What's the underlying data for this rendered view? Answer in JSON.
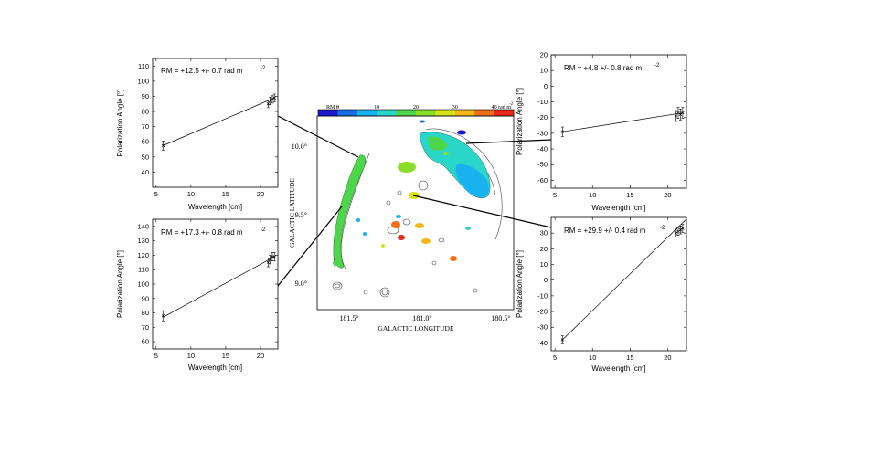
{
  "map": {
    "colorbar": {
      "prefix": "RM  =",
      "ticks": [
        "0",
        "10",
        "20",
        "30",
        "40 rad m"
      ],
      "unit_exp": "-2",
      "range": [
        -5,
        45
      ],
      "colors": [
        "#1a1acc",
        "#1a6be6",
        "#19b2f0",
        "#2ad6c8",
        "#4ed64a",
        "#8ade2a",
        "#d8e21a",
        "#f5b718",
        "#f0701a",
        "#e8281a"
      ]
    },
    "xlabel": "GALACTIC LONGITUDE",
    "ylabel": "GALACTIC LATITUDE",
    "xticks": [
      "181.5°",
      "181.0°",
      "180.5°"
    ],
    "yticks": [
      "10.0°",
      "9.5°",
      "9.0°"
    ]
  },
  "chart_data": [
    {
      "type": "scatter",
      "panel": "top-left",
      "annotation": "RM = +12.5 +/- 0.7 rad m",
      "annotation_exp": "-2",
      "xlabel": "Wavelength [cm]",
      "ylabel": "Polarization Angle [°]",
      "xlim": [
        4.5,
        22.5
      ],
      "ylim": [
        30,
        115
      ],
      "xticks": [
        5,
        10,
        15,
        20
      ],
      "yticks": [
        40,
        50,
        60,
        70,
        80,
        90,
        100,
        110
      ],
      "points": [
        {
          "x": 6.0,
          "y": 57.5,
          "err": 3
        },
        {
          "x": 21.1,
          "y": 85,
          "err": 2.5
        },
        {
          "x": 21.4,
          "y": 87,
          "err": 2.5
        },
        {
          "x": 21.7,
          "y": 88,
          "err": 2.5
        },
        {
          "x": 22.0,
          "y": 89,
          "err": 2.5
        }
      ],
      "fit": [
        [
          6.0,
          57.5
        ],
        [
          22.0,
          89
        ]
      ]
    },
    {
      "type": "scatter",
      "panel": "bottom-left",
      "annotation": "RM = +17.3 +/- 0.8 rad m",
      "annotation_exp": "-2",
      "xlabel": "Wavelength [cm]",
      "ylabel": "Polarization Angle [°]",
      "xlim": [
        4.5,
        22.5
      ],
      "ylim": [
        55,
        145
      ],
      "xticks": [
        5,
        10,
        15,
        20
      ],
      "yticks": [
        60,
        70,
        80,
        90,
        100,
        110,
        120,
        130,
        140
      ],
      "points": [
        {
          "x": 6.0,
          "y": 78,
          "err": 3.5
        },
        {
          "x": 21.1,
          "y": 115,
          "err": 3
        },
        {
          "x": 21.4,
          "y": 117,
          "err": 3
        },
        {
          "x": 21.7,
          "y": 119,
          "err": 3
        },
        {
          "x": 22.0,
          "y": 119,
          "err": 3
        }
      ],
      "fit": [
        [
          6.0,
          77
        ],
        [
          22.0,
          119
        ]
      ]
    },
    {
      "type": "scatter",
      "panel": "top-right",
      "annotation": "RM = +4.8 +/- 0.8 rad m",
      "annotation_exp": "-2",
      "xlabel": "Wavelength [cm]",
      "ylabel": "Polarization Angle [°]",
      "xlim": [
        4.5,
        22.5
      ],
      "ylim": [
        -65,
        20
      ],
      "xticks": [
        5,
        10,
        15,
        20
      ],
      "yticks": [
        -60,
        -50,
        -40,
        -30,
        -20,
        -10,
        0,
        10,
        20
      ],
      "points": [
        {
          "x": 6.0,
          "y": -29,
          "err": 3
        },
        {
          "x": 21.1,
          "y": -19,
          "err": 3.5
        },
        {
          "x": 21.4,
          "y": -17,
          "err": 3.5
        },
        {
          "x": 21.7,
          "y": -18,
          "err": 3.5
        },
        {
          "x": 22.0,
          "y": -17,
          "err": 3.5
        }
      ],
      "fit": [
        [
          6.0,
          -29
        ],
        [
          22.0,
          -17
        ]
      ]
    },
    {
      "type": "scatter",
      "panel": "bottom-right",
      "annotation": "RM = +29.9 +/- 0.4 rad m",
      "annotation_exp": "-2",
      "xlabel": "Wavelength [cm]",
      "ylabel": "Polarization Angle [°]",
      "xlim": [
        4.5,
        22.5
      ],
      "ylim": [
        -45,
        40
      ],
      "xticks": [
        5,
        10,
        15,
        20
      ],
      "yticks": [
        -40,
        -30,
        -20,
        -10,
        0,
        10,
        20,
        30
      ],
      "points": [
        {
          "x": 6.0,
          "y": -38,
          "err": 2.5
        },
        {
          "x": 21.1,
          "y": 30,
          "err": 2.5
        },
        {
          "x": 21.4,
          "y": 31,
          "err": 2.5
        },
        {
          "x": 21.7,
          "y": 32,
          "err": 2.5
        },
        {
          "x": 22.0,
          "y": 33,
          "err": 2.5
        }
      ],
      "fit": [
        [
          6.0,
          -38
        ],
        [
          22.5,
          39
        ]
      ]
    }
  ]
}
